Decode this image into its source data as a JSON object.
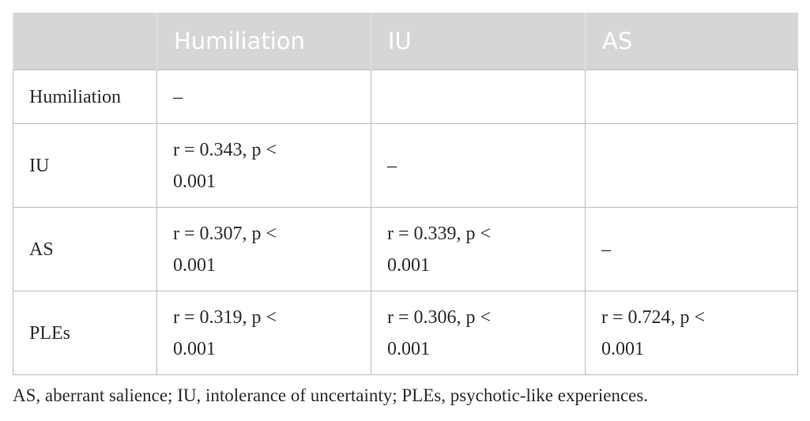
{
  "table": {
    "header": [
      null,
      "Humiliation",
      "IU",
      "AS"
    ],
    "rows": [
      [
        "Humiliation",
        "–",
        null,
        null
      ],
      [
        "IU",
        "r = 0.343, p < 0.001",
        "–",
        null
      ],
      [
        "AS",
        "r = 0.307, p < 0.001",
        "r = 0.339, p < 0.001",
        "–"
      ],
      [
        "PLEs",
        "r = 0.319, p < 0.001",
        "r = 0.306, p < 0.001",
        "r = 0.724, p < 0.001"
      ]
    ]
  },
  "footnote": "AS, aberrant salience; IU, intolerance of uncertainty; PLEs, psychotic-like experiences."
}
